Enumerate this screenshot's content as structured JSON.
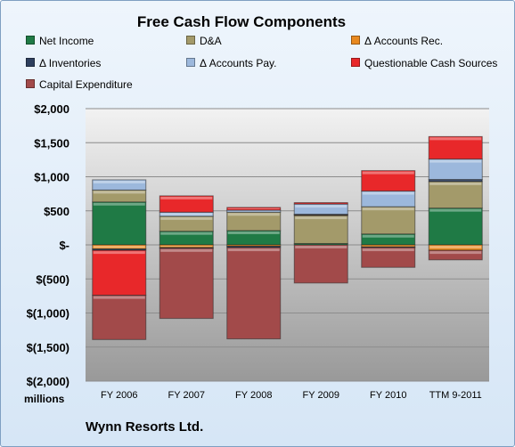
{
  "company": "Wynn Resorts Ltd.",
  "colors": {
    "net_income": "#1f7a45",
    "da": "#a39a6a",
    "accounts_rec": "#e8891f",
    "inventories": "#2e3f5e",
    "accounts_pay": "#9cb8dc",
    "questionable": "#e8282a",
    "capex": "#a24a4a"
  },
  "chart_data": {
    "type": "bar",
    "stacked": true,
    "title": "Free Cash Flow Components",
    "unit_label": "millions",
    "categories": [
      "FY 2006",
      "FY 2007",
      "FY 2008",
      "FY 2009",
      "FY 2010",
      "TTM 9-2011"
    ],
    "ylim": [
      -2000,
      2000
    ],
    "yticks": [
      {
        "value": 2000,
        "label": "$2,000"
      },
      {
        "value": 1500,
        "label": "$1,500"
      },
      {
        "value": 1000,
        "label": "$1,000"
      },
      {
        "value": 500,
        "label": "$500"
      },
      {
        "value": 0,
        "label": "$-"
      },
      {
        "value": -500,
        "label": "$(500)"
      },
      {
        "value": -1000,
        "label": "$(1,000)"
      },
      {
        "value": -1500,
        "label": "$(1,500)"
      },
      {
        "value": -2000,
        "label": "$(2,000)"
      }
    ],
    "grid": true,
    "legend_position": "top",
    "series": [
      {
        "key": "net_income",
        "name": "Net Income",
        "values": [
          630,
          200,
          210,
          20,
          160,
          540
        ]
      },
      {
        "key": "da",
        "name": "D&A",
        "values": [
          175,
          220,
          270,
          410,
          400,
          390
        ]
      },
      {
        "key": "accounts_rec",
        "name": "Δ Accounts Rec.",
        "values": [
          -60,
          -40,
          -20,
          15,
          -30,
          -80
        ]
      },
      {
        "key": "inventories",
        "name": "Δ Inventories",
        "values": [
          -20,
          -10,
          -20,
          5,
          -10,
          30
        ]
      },
      {
        "key": "accounts_pay",
        "name": "Δ Accounts Pay.",
        "values": [
          150,
          60,
          30,
          150,
          230,
          300
        ]
      },
      {
        "key": "questionable",
        "name": "Questionable Cash Sources",
        "values": [
          -660,
          240,
          40,
          20,
          300,
          330
        ]
      },
      {
        "key": "capex",
        "name": "Capital Expenditure",
        "values": [
          -650,
          -1030,
          -1340,
          -560,
          -290,
          -140
        ]
      }
    ]
  }
}
